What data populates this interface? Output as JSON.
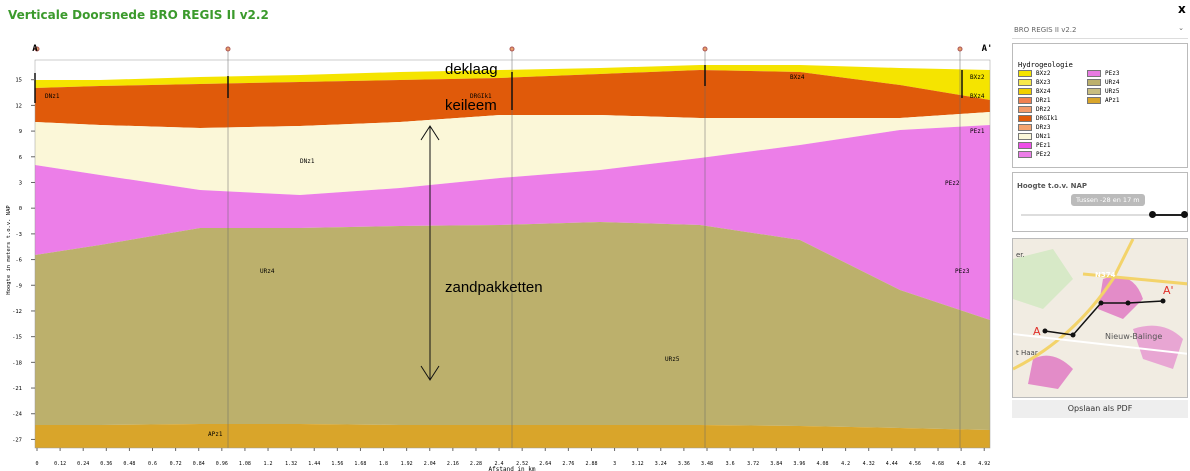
{
  "header": {
    "title": "Verticale Doorsnede BRO REGIS II v2.2",
    "close": "x"
  },
  "section": {
    "start": "A",
    "end": "A'",
    "ylabel": "Hoogte in meters t.o.v. NAP",
    "xlabel": "Afstand in km",
    "xlim": [
      0,
      4.95
    ],
    "ylim": [
      -28,
      17.3
    ],
    "yticks": [
      15,
      12,
      9,
      6,
      3,
      0,
      -3,
      -6,
      -9,
      -12,
      -15,
      -18,
      -21,
      -24,
      -27
    ],
    "xticks": [
      0,
      0.12,
      0.24,
      0.36,
      0.48,
      0.6,
      0.72,
      0.84,
      0.96,
      1.08,
      1.2,
      1.32,
      1.44,
      1.56,
      1.68,
      1.8,
      1.92,
      2.04,
      2.16,
      2.28,
      2.4,
      2.52,
      2.64,
      2.76,
      2.88,
      3,
      3.12,
      3.24,
      3.36,
      3.48,
      3.6,
      3.72,
      3.84,
      3.96,
      4.08,
      4.2,
      4.32,
      4.44,
      4.56,
      4.68,
      4.8,
      4.92
    ],
    "layer_labels": [
      "DNz1",
      "DRGIk1",
      "BXz4",
      "BXz2",
      "BXz4",
      "DNz1",
      "PEz1",
      "PEz2",
      "URz4",
      "PEz3",
      "URz5",
      "APz1"
    ],
    "annotations": [
      "deklaag",
      "keileem",
      "zandpakketten"
    ]
  },
  "sidebar": {
    "model": "BRO REGIS II v2.2",
    "legend_title": "Hydrogeologie",
    "legend": [
      {
        "name": "BXz2",
        "color": "#f5e400"
      },
      {
        "name": "BXz3",
        "color": "#f7e94a"
      },
      {
        "name": "BXz4",
        "color": "#f0d000"
      },
      {
        "name": "DRz1",
        "color": "#f08050"
      },
      {
        "name": "DRz2",
        "color": "#f29a6a"
      },
      {
        "name": "DRGIk1",
        "color": "#e05a0a"
      },
      {
        "name": "DRz3",
        "color": "#f4a36f"
      },
      {
        "name": "DNz1",
        "color": "#fbf7d8"
      },
      {
        "name": "PEz1",
        "color": "#ee4fe8"
      },
      {
        "name": "PEz2",
        "color": "#ec7ee8"
      },
      {
        "name": "PEz3",
        "color": "#e87be3"
      },
      {
        "name": "URz4",
        "color": "#bcb06c"
      },
      {
        "name": "URz5",
        "color": "#c8bd80"
      },
      {
        "name": "APz1",
        "color": "#d9a52a"
      }
    ],
    "height_title": "Hoogte t.o.v. NAP",
    "height_range": "Tussen -28 en 17 m",
    "map_labels": [
      "N374",
      "Nieuw-Balinge",
      "A",
      "A'",
      "er.",
      "t Haar"
    ],
    "button": "Opslaan als PDF"
  }
}
